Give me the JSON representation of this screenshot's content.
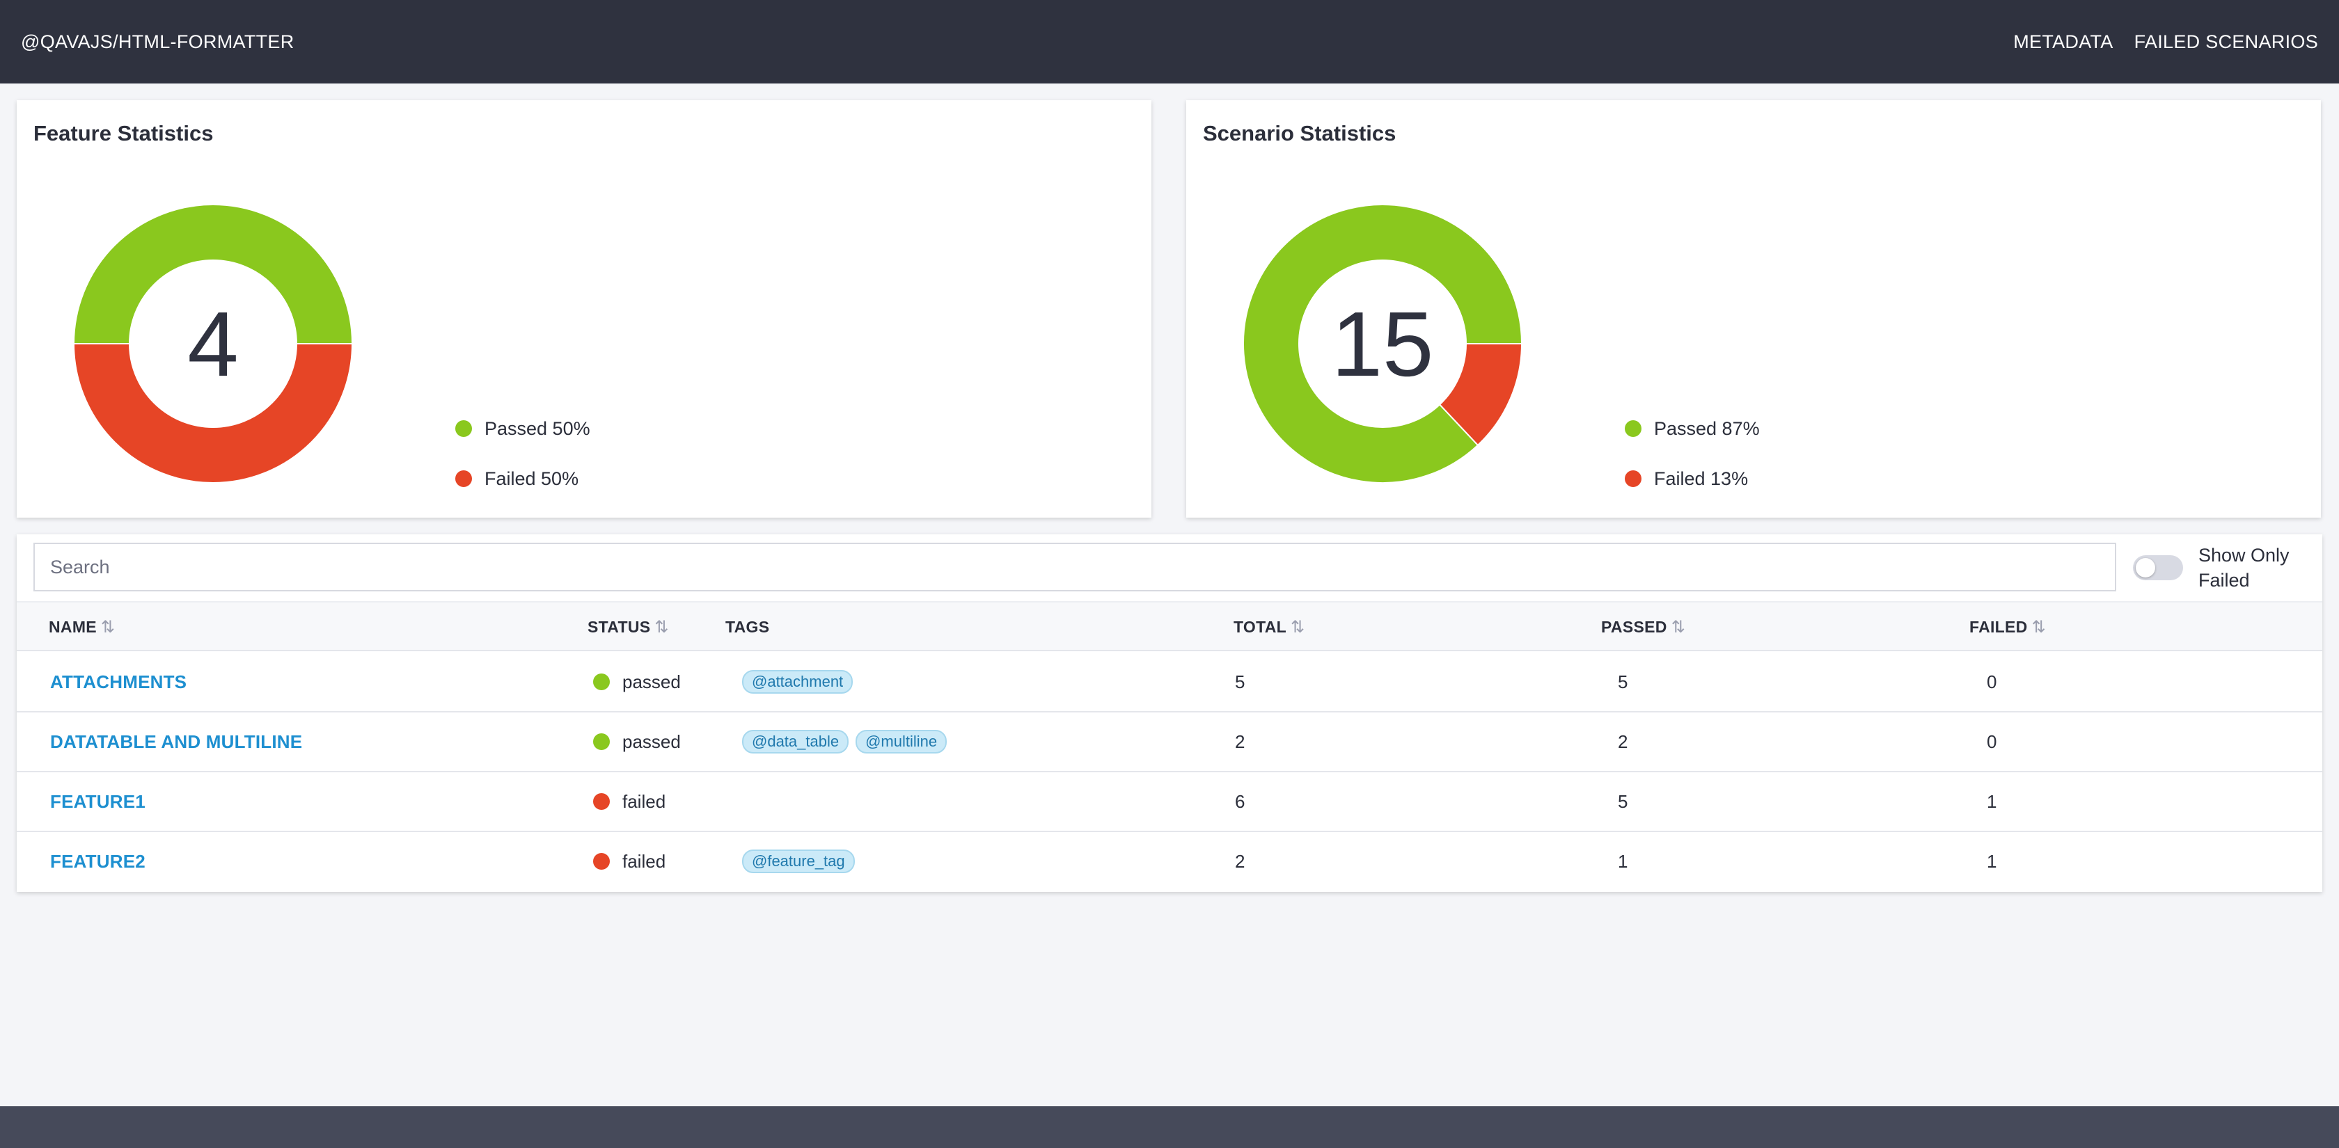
{
  "header": {
    "brand": "@QAVAJS/HTML-FORMATTER",
    "nav": [
      "METADATA",
      "FAILED SCENARIOS"
    ]
  },
  "colors": {
    "passed": "#8ac81e",
    "failed": "#e64526",
    "header_bg": "#2f323f",
    "link": "#1d8fd0"
  },
  "feature_stats": {
    "title": "Feature Statistics",
    "total": "4",
    "legend": [
      "Passed 50%",
      "Failed 50%"
    ]
  },
  "scenario_stats": {
    "title": "Scenario Statistics",
    "total": "15",
    "legend": [
      "Passed 87%",
      "Failed 13%"
    ]
  },
  "chart_data": [
    {
      "type": "pie",
      "title": "Feature Statistics",
      "categories": [
        "Passed",
        "Failed"
      ],
      "values": [
        50,
        50
      ],
      "center_label": "4"
    },
    {
      "type": "pie",
      "title": "Scenario Statistics",
      "categories": [
        "Passed",
        "Failed"
      ],
      "values": [
        87,
        13
      ],
      "center_label": "15"
    }
  ],
  "table": {
    "search_placeholder": "Search",
    "toggle_label": "Show Only Failed",
    "toggle_on": false,
    "columns": [
      "NAME",
      "STATUS",
      "TAGS",
      "TOTAL",
      "PASSED",
      "FAILED"
    ],
    "rows": [
      {
        "name": "ATTACHMENTS",
        "status": "passed",
        "tags": [
          "@attachment"
        ],
        "total": "5",
        "passed": "5",
        "failed": "0"
      },
      {
        "name": "DATATABLE AND MULTILINE",
        "status": "passed",
        "tags": [
          "@data_table",
          "@multiline"
        ],
        "total": "2",
        "passed": "2",
        "failed": "0"
      },
      {
        "name": "FEATURE1",
        "status": "failed",
        "tags": [],
        "total": "6",
        "passed": "5",
        "failed": "1"
      },
      {
        "name": "FEATURE2",
        "status": "failed",
        "tags": [
          "@feature_tag"
        ],
        "total": "2",
        "passed": "1",
        "failed": "1"
      }
    ]
  }
}
